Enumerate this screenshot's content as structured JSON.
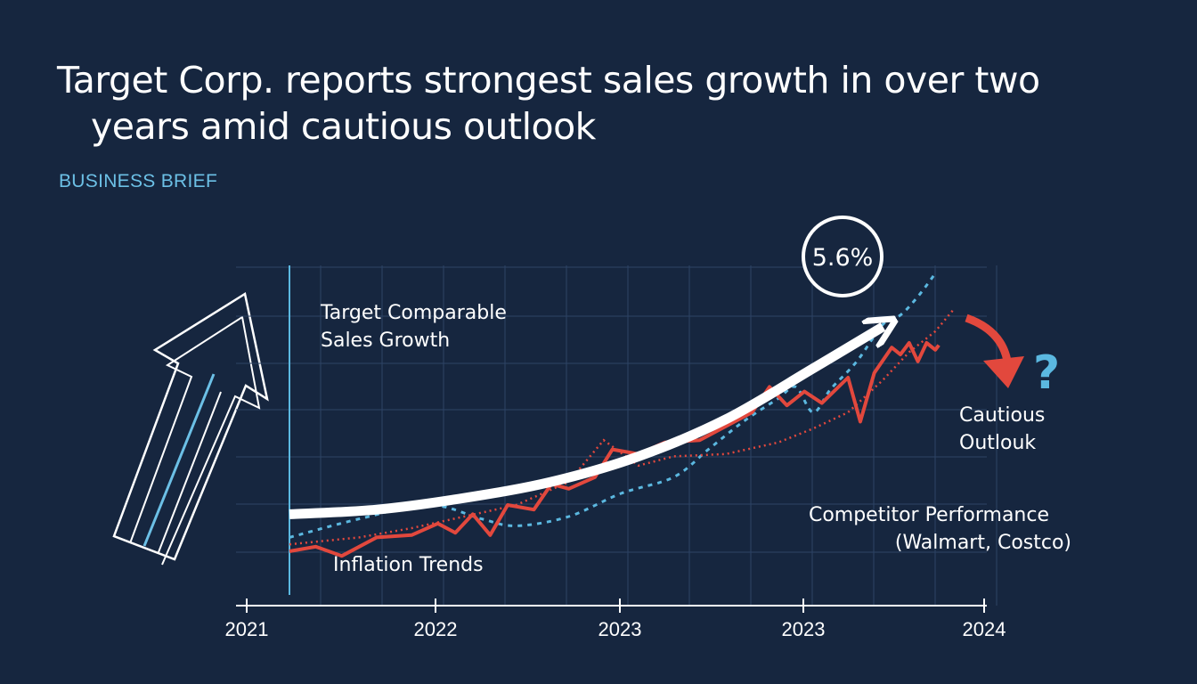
{
  "header": {
    "title_line1": "Target Corp. reports strongest sales growth in over two",
    "title_line2": "years amid cautious outlook",
    "kicker": "BUSINESS BRIEF"
  },
  "colors": {
    "background": "#16263f",
    "target": "#e2483d",
    "competitor": "#5bb8e0",
    "trend": "#ffffff",
    "grid": "#2d4466"
  },
  "chart_data": {
    "type": "line",
    "x_ticks": [
      "2021",
      "2022",
      "2023",
      "2023",
      "2024"
    ],
    "ylim": [
      0,
      7
    ],
    "callout_value": "5.6%",
    "annotations": {
      "target_label_line1": "Target Comparable",
      "target_label_line2": "Sales Growth",
      "inflation_label": "Inflation Trends",
      "competitor_label_line1": "Competitor Performance",
      "competitor_label_line2": "(Walmart, Costco)",
      "outlook_label_line1": "Cautious",
      "outlook_label_line2": "Outlouk",
      "question_mark": "?"
    },
    "series": [
      {
        "key": "trend",
        "x": [
          0,
          0.5,
          1,
          1.5,
          2,
          2.5,
          3,
          3.4
        ],
        "values": [
          1.3,
          1.4,
          1.65,
          2.0,
          2.55,
          3.35,
          4.45,
          5.35
        ]
      },
      {
        "key": "target",
        "x": [
          0,
          0.15,
          0.3,
          0.5,
          0.7,
          0.85,
          0.95,
          1.05,
          1.15,
          1.25,
          1.4,
          1.5,
          1.6,
          1.75,
          1.85,
          2.0,
          2.15,
          2.35,
          2.5,
          2.65,
          2.75,
          2.85,
          2.95,
          3.05,
          3.2,
          3.27,
          3.35,
          3.45,
          3.5,
          3.55,
          3.6,
          3.65,
          3.7,
          3.72
        ],
        "values": [
          0.5,
          0.6,
          0.4,
          0.8,
          0.85,
          1.1,
          0.9,
          1.3,
          0.85,
          1.5,
          1.4,
          1.95,
          1.85,
          2.1,
          2.7,
          2.6,
          2.85,
          2.9,
          3.2,
          3.5,
          4.05,
          3.65,
          3.95,
          3.7,
          4.25,
          3.3,
          4.35,
          4.9,
          4.75,
          5.0,
          4.6,
          5.0,
          4.85,
          4.95
        ]
      },
      {
        "key": "competitor_dashed",
        "x": [
          0,
          0.4,
          0.8,
          1.1,
          1.3,
          1.6,
          1.9,
          2.2,
          2.4,
          2.6,
          2.8,
          2.9,
          3.0,
          3.1,
          3.25,
          3.4,
          3.5,
          3.6,
          3.7
        ],
        "values": [
          0.8,
          1.2,
          1.5,
          1.2,
          1.05,
          1.25,
          1.75,
          2.1,
          2.7,
          3.3,
          3.8,
          4.05,
          3.5,
          4.0,
          4.6,
          5.4,
          5.6,
          6.0,
          6.5
        ]
      },
      {
        "key": "competitor_dotted",
        "x": [
          0,
          0.4,
          0.7,
          1.0,
          1.3,
          1.6,
          1.8,
          2.0,
          2.2,
          2.5,
          2.8,
          3.0,
          3.2,
          3.4,
          3.55,
          3.7,
          3.8
        ],
        "values": [
          0.65,
          0.8,
          1.0,
          1.25,
          1.5,
          2.0,
          2.9,
          2.35,
          2.55,
          2.6,
          2.85,
          3.15,
          3.5,
          4.2,
          4.8,
          5.25,
          5.7
        ]
      }
    ]
  }
}
